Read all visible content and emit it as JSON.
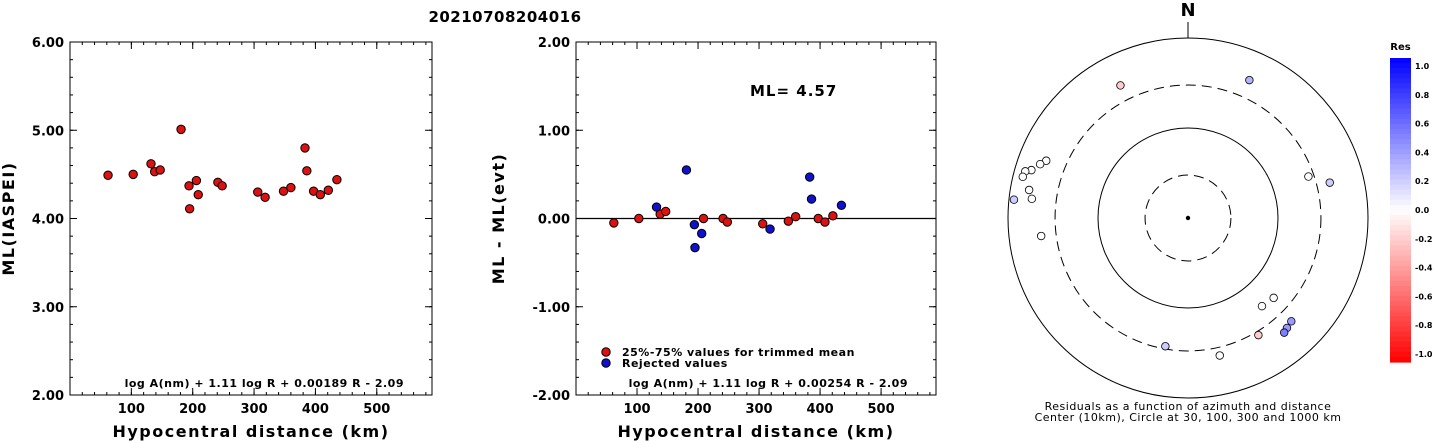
{
  "title": "20210708204016",
  "chart_data": [
    {
      "type": "scatter",
      "xlabel": "Hypocentral distance (km)",
      "ylabel": "ML(IASPEI)",
      "xlim": [
        0,
        590
      ],
      "ylim": [
        2.0,
        6.0
      ],
      "xticks": [
        "100",
        "200",
        "300",
        "400",
        "500"
      ],
      "xtick_values": [
        100,
        200,
        300,
        400,
        500
      ],
      "yticks": [
        "2.00",
        "3.00",
        "4.00",
        "5.00",
        "6.00"
      ],
      "ytick_values": [
        2.0,
        3.0,
        4.0,
        5.0,
        6.0
      ],
      "formula": "log A(nm) + 1.11 log R + 0.00189 R - 2.09",
      "marker_color": "#dd1111",
      "points": [
        [
          62,
          4.49
        ],
        [
          103,
          4.5
        ],
        [
          132,
          4.62
        ],
        [
          138,
          4.53
        ],
        [
          147,
          4.55
        ],
        [
          181,
          5.01
        ],
        [
          194,
          4.37
        ],
        [
          195,
          4.11
        ],
        [
          206,
          4.43
        ],
        [
          209,
          4.27
        ],
        [
          241,
          4.41
        ],
        [
          248,
          4.37
        ],
        [
          306,
          4.3
        ],
        [
          318,
          4.24
        ],
        [
          348,
          4.31
        ],
        [
          360,
          4.35
        ],
        [
          383,
          4.8
        ],
        [
          386,
          4.54
        ],
        [
          397,
          4.31
        ],
        [
          408,
          4.27
        ],
        [
          421,
          4.32
        ],
        [
          435,
          4.44
        ]
      ]
    },
    {
      "type": "scatter",
      "xlabel": "Hypocentral distance (km)",
      "ylabel": "ML - ML(evt)",
      "xlim": [
        0,
        590
      ],
      "ylim": [
        -2.0,
        2.0
      ],
      "xticks": [
        "100",
        "200",
        "300",
        "400",
        "500"
      ],
      "xtick_values": [
        100,
        200,
        300,
        400,
        500
      ],
      "yticks": [
        "-2.00",
        "-1.00",
        "0.00",
        "1.00",
        "2.00"
      ],
      "ytick_values": [
        -2.0,
        -1.0,
        0.0,
        1.0,
        2.0
      ],
      "annotation": "ML=  4.57",
      "formula": "log A(nm) + 1.11 log R + 0.00254 R - 2.09",
      "legend": [
        "25%-75% values for trimmed mean",
        "Rejected values"
      ],
      "legend_colors": [
        "#dd1111",
        "#1111cc"
      ],
      "series": [
        {
          "name": "25%-75% values for trimmed mean",
          "color": "#dd1111",
          "points": [
            [
              62,
              -0.05
            ],
            [
              103,
              0.0
            ],
            [
              138,
              0.05
            ],
            [
              147,
              0.08
            ],
            [
              209,
              0.0
            ],
            [
              241,
              0.0
            ],
            [
              248,
              -0.04
            ],
            [
              306,
              -0.06
            ],
            [
              348,
              -0.03
            ],
            [
              360,
              0.02
            ],
            [
              397,
              0.0
            ],
            [
              408,
              -0.04
            ],
            [
              421,
              0.03
            ]
          ]
        },
        {
          "name": "Rejected values",
          "color": "#1111cc",
          "points": [
            [
              132,
              0.13
            ],
            [
              181,
              0.55
            ],
            [
              194,
              -0.07
            ],
            [
              195,
              -0.33
            ],
            [
              206,
              -0.17
            ],
            [
              318,
              -0.12
            ],
            [
              383,
              0.47
            ],
            [
              386,
              0.22
            ],
            [
              435,
              0.15
            ]
          ]
        }
      ]
    },
    {
      "type": "scatter",
      "subtype": "polar",
      "north_label": "N",
      "caption_line1": "Residuals as a function of azimuth and distance",
      "caption_line2": "Center (10km), Circle at 30, 100, 300 and 1000 km",
      "colorbar_title": "Res",
      "colorbar_labels": [
        "1.0",
        "0.8",
        "0.6",
        "0.4",
        "0.2",
        "0.0",
        "-0.2",
        "-0.4",
        "-0.6",
        "-0.8",
        "-1.0"
      ],
      "rings_km": [
        30,
        100,
        300,
        1000
      ],
      "stations": [
        {
          "azimuth_deg": 333,
          "distance_km": 450,
          "residual": -0.2
        },
        {
          "azimuth_deg": 24,
          "distance_km": 475,
          "residual": 0.3
        },
        {
          "azimuth_deg": 71,
          "distance_km": 260,
          "residual": 0.0
        },
        {
          "azimuth_deg": 76,
          "distance_km": 420,
          "residual": 0.2
        },
        {
          "azimuth_deg": 292,
          "distance_km": 500,
          "residual": 0.0
        },
        {
          "azimuth_deg": 290,
          "distance_km": 560,
          "residual": 0.0
        },
        {
          "azimuth_deg": 287,
          "distance_km": 660,
          "residual": 0.0
        },
        {
          "azimuth_deg": 286,
          "distance_km": 760,
          "residual": 0.0
        },
        {
          "azimuth_deg": 284,
          "distance_km": 780,
          "residual": 0.0
        },
        {
          "azimuth_deg": 280,
          "distance_km": 620,
          "residual": 0.0
        },
        {
          "azimuth_deg": 277,
          "distance_km": 560,
          "residual": 0.0
        },
        {
          "azimuth_deg": 276,
          "distance_km": 880,
          "residual": 0.2
        },
        {
          "azimuth_deg": 263,
          "distance_km": 440,
          "residual": 0.0
        },
        {
          "azimuth_deg": 140,
          "distance_km": 190,
          "residual": 0.0
        },
        {
          "azimuth_deg": 133,
          "distance_km": 200,
          "residual": 0.0
        },
        {
          "azimuth_deg": 149,
          "distance_km": 330,
          "residual": -0.2
        },
        {
          "azimuth_deg": 135,
          "distance_km": 420,
          "residual": 0.4
        },
        {
          "azimuth_deg": 138,
          "distance_km": 440,
          "residual": 0.4
        },
        {
          "azimuth_deg": 140,
          "distance_km": 460,
          "residual": 0.5
        },
        {
          "azimuth_deg": 167,
          "distance_km": 370,
          "residual": 0.0
        },
        {
          "azimuth_deg": 190,
          "distance_km": 280,
          "residual": 0.2
        }
      ]
    }
  ]
}
